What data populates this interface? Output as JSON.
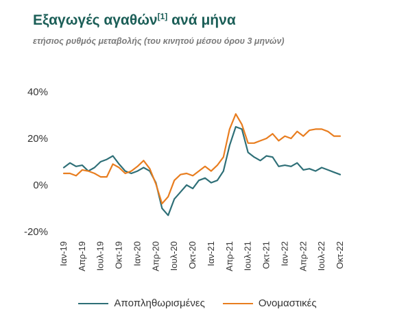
{
  "chart_data": {
    "type": "line",
    "title": "Εξαγωγές αγαθών",
    "title_footnote": "[1]",
    "title_suffix": "ανά μήνα",
    "subtitle": "ετήσιος ρυθμός μεταβολής (του κινητού μέσου όρου 3 μηνών)",
    "y_ticks": [
      "40%",
      "20%",
      "0%",
      "-20%"
    ],
    "ylim": [
      -20,
      40
    ],
    "x_labels": [
      "Ιαν-19",
      "Απρ-19",
      "Ιουλ-19",
      "Οκτ-19",
      "Ιαν-20",
      "Απρ-20",
      "Ιουλ-20",
      "Οκτ-20",
      "Ιαν-21",
      "Απρ-21",
      "Ιουλ-21",
      "Οκτ-21",
      "Ιαν-22",
      "Απρ-22",
      "Ιουλ-22",
      "Οκτ-22"
    ],
    "legend_position": "bottom",
    "grid": false,
    "series": [
      {
        "name": "Αποπληθωρισμένες",
        "color": "#2e6f77",
        "values": [
          7.5,
          9.5,
          8,
          8.5,
          6,
          7.5,
          10,
          11,
          12.5,
          9,
          6,
          5,
          6,
          7.5,
          6,
          1,
          -10,
          -13,
          -6,
          -3,
          0,
          -1.5,
          2,
          3,
          1,
          2,
          6,
          17,
          25,
          24,
          14,
          12,
          10.5,
          12.5,
          12,
          8,
          8.5,
          8,
          9.5,
          6.5,
          7,
          6,
          7.5,
          6.5,
          5.5,
          4.5
        ]
      },
      {
        "name": "Ονομαστικές",
        "color": "#e87d1f",
        "values": [
          5,
          5,
          4,
          6.5,
          6,
          5,
          3.5,
          3.5,
          9,
          7.5,
          5,
          6,
          8,
          10.5,
          7,
          0.5,
          -8,
          -5,
          2,
          4.5,
          5,
          4,
          6,
          8,
          6,
          8.5,
          12,
          24,
          30.5,
          26,
          18,
          18,
          19,
          20,
          22,
          19,
          21,
          20,
          23,
          21,
          23.5,
          24,
          24,
          23,
          21,
          21
        ]
      }
    ]
  }
}
